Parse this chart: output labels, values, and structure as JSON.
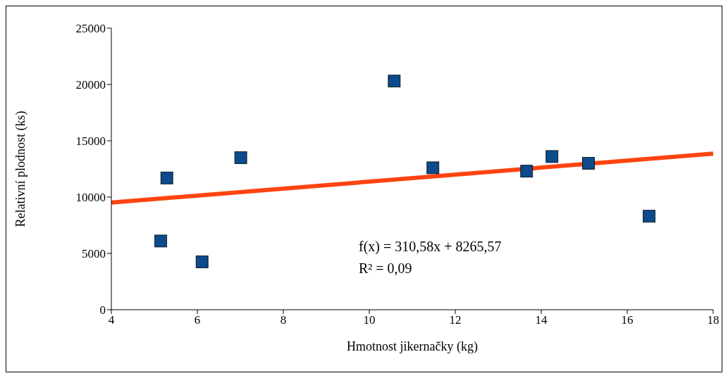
{
  "chart_data": {
    "type": "scatter",
    "xlabel": "Hmotnost jikernačky (kg)",
    "ylabel": "Relativní plodnost (ks)",
    "xlim": [
      4,
      18
    ],
    "xticks": [
      4,
      6,
      8,
      10,
      12,
      14,
      16,
      18
    ],
    "ylim": [
      0,
      25000
    ],
    "yticks": [
      0,
      5000,
      10000,
      15000,
      20000,
      25000
    ],
    "grid": false,
    "legend": false,
    "annotations": [
      "f(x) = 310,58x + 8265,57",
      "R² = 0,09"
    ],
    "series": [
      {
        "marker": "square",
        "color": "#0b4a8c",
        "x": [
          5.15,
          5.29,
          6.11,
          7.01,
          10.58,
          11.48,
          13.66,
          14.25,
          15.1,
          16.51
        ],
        "values": [
          6100,
          11700,
          4250,
          13500,
          20300,
          12600,
          12300,
          13600,
          13000,
          8300
        ]
      },
      {
        "type": "line",
        "marker": "none",
        "color": "#ff4411",
        "x": [
          4,
          18
        ],
        "values": [
          9510,
          13860
        ]
      }
    ]
  }
}
